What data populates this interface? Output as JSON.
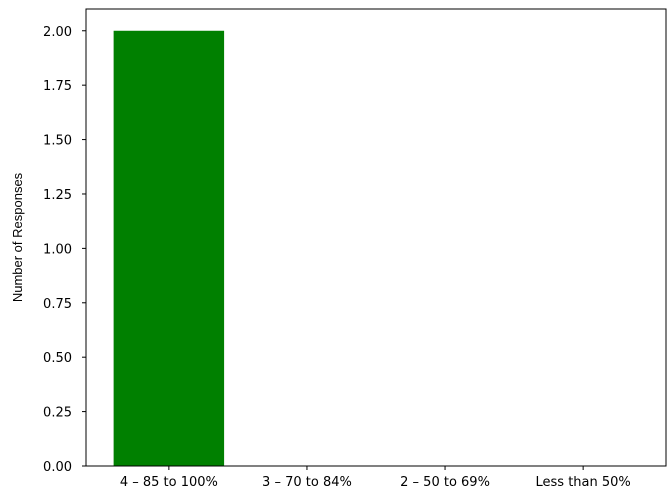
{
  "chart_data": {
    "type": "bar",
    "title": "",
    "xlabel": "",
    "ylabel": "Number of Responses",
    "categories": [
      "4 – 85 to 100%",
      "3 – 70 to 84%",
      "2 – 50 to 69%",
      "Less than 50%"
    ],
    "values": [
      2,
      0,
      0,
      0
    ],
    "ylim": [
      0,
      2.1
    ],
    "yticks": [
      "0.00",
      "0.25",
      "0.50",
      "0.75",
      "1.00",
      "1.25",
      "1.50",
      "1.75",
      "2.00"
    ],
    "bar_color": "#008000",
    "grid": false,
    "legend": "none"
  }
}
